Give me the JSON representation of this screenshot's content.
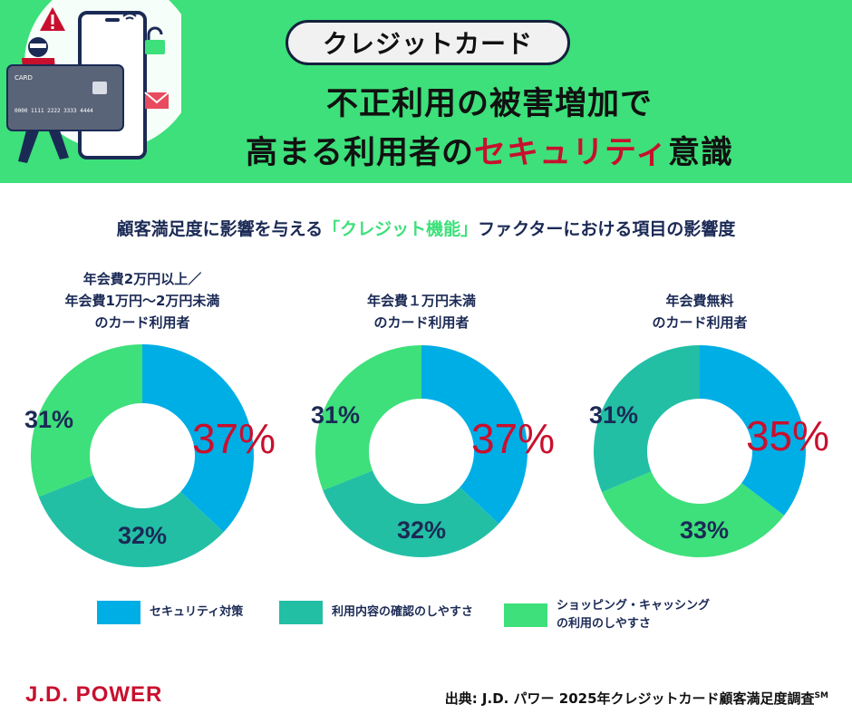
{
  "header": {
    "badge": "クレジットカード",
    "title_line1": "不正利用の被害増加で",
    "title_line2_prefix": "高まる利用者の",
    "title_line2_accent": "セキュリティ",
    "title_line2_suffix": "意識",
    "illustration": {
      "card_brand": "CARD",
      "card_number": "0000 1111 2222 3333 4444"
    }
  },
  "subtitle": {
    "prefix": "顧客満足度に影響を与える",
    "highlight": "「クレジット機能」",
    "suffix": "ファクターにおける項目の影響度"
  },
  "colors": {
    "header_bg": "#3de07a",
    "security": "#00aee6",
    "confirmation": "#22bfa5",
    "shopping": "#3de07a",
    "accent_red": "#c8102e",
    "navy": "#1b2a55"
  },
  "chart_data": [
    {
      "type": "pie",
      "title_lines": [
        "年会費2万円以上／",
        "年会費1万円～2万円未満",
        "のカード利用者"
      ],
      "categories": [
        "セキュリティ対策",
        "利用内容の確認のしやすさ",
        "ショッピング・キャッシング の利用のしやすさ"
      ],
      "values": [
        37,
        32,
        31
      ],
      "labels": [
        "37%",
        "32%",
        "31%"
      ]
    },
    {
      "type": "pie",
      "title_lines": [
        "年会費１万円未満",
        "のカード利用者"
      ],
      "categories": [
        "セキュリティ対策",
        "利用内容の確認のしやすさ",
        "ショッピング・キャッシング の利用のしやすさ"
      ],
      "values": [
        37,
        32,
        31
      ],
      "labels": [
        "37%",
        "32%",
        "31%"
      ]
    },
    {
      "type": "pie",
      "title_lines": [
        "年会費無料",
        "のカード利用者"
      ],
      "categories": [
        "セキュリティ対策",
        "ショッピング・キャッシング の利用のしやすさ",
        "利用内容の確認のしやすさ"
      ],
      "values": [
        35,
        33,
        31
      ],
      "labels": [
        "35%",
        "33%",
        "31%"
      ]
    }
  ],
  "legend": [
    {
      "label": "セキュリティ対策",
      "color": "#00aee6"
    },
    {
      "label": "利用内容の確認のしやすさ",
      "color": "#22bfa5"
    },
    {
      "label": "ショッピング・キャッシング\nの利用のしやすさ",
      "color": "#3de07a"
    }
  ],
  "footer": {
    "brand": "J.D. POWER",
    "source": "出典: J.D. パワー 2025年クレジットカード顧客満足度調査",
    "source_sup": "SM"
  }
}
